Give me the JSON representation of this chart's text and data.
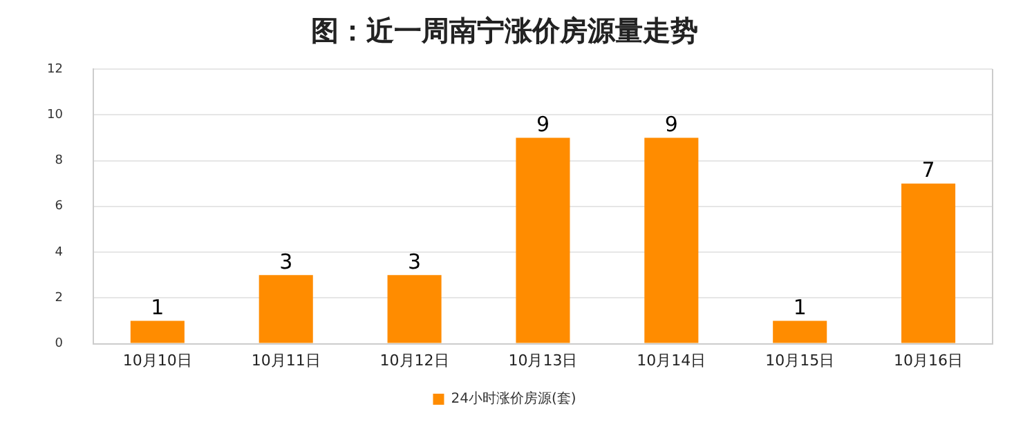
{
  "chart_data": {
    "type": "bar",
    "title": "图：近一周南宁涨价房源量走势",
    "categories": [
      "10月10日",
      "10月11日",
      "10月12日",
      "10月13日",
      "10月14日",
      "10月15日",
      "10月16日"
    ],
    "series": [
      {
        "name": "24小时涨价房源(套)",
        "color": "#ff8c00",
        "values": [
          1,
          3,
          3,
          9,
          9,
          1,
          7
        ]
      }
    ],
    "ylim": [
      0,
      12
    ],
    "yticks": [
      0,
      2,
      4,
      6,
      8,
      10,
      12
    ],
    "grid": "y",
    "legend": "bottom",
    "data_labels": true
  }
}
